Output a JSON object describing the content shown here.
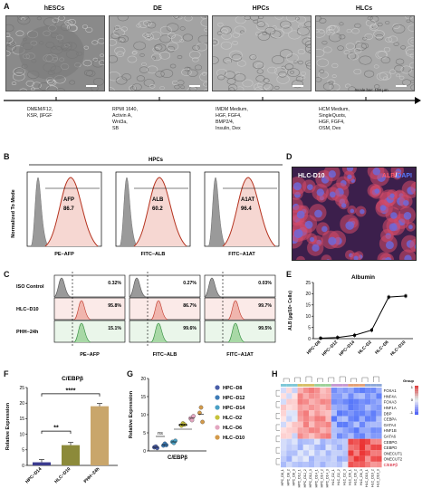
{
  "panels": {
    "A": "A",
    "B": "B",
    "C": "C",
    "D": "D",
    "E": "E",
    "F": "F",
    "G": "G",
    "H": "H"
  },
  "panelA": {
    "stages": [
      "hESCs",
      "DE",
      "HPCs",
      "HLCs"
    ],
    "media": [
      "DMEM/F12,\nKSR, βFGF",
      "RPMI 1640,\nActivin A,\nWnt3a,\nSB",
      "IMDM Medium,\nHGF, FGF4,\nBMP2/4,\nInsulin, Dex",
      "HCM Medium,\nSingleQuots,\nHGF, FGF4,\nOSM, Dex"
    ],
    "scale_bar": "Scale bar: 100 μm"
  },
  "panelB": {
    "header": "HPCs",
    "ylabel": "Normalized To Mode",
    "plots": [
      {
        "marker": "AFP",
        "value": "86.7",
        "xlabel": "PE−AFP"
      },
      {
        "marker": "ALB",
        "value": "60.2",
        "xlabel": "FITC−ALB"
      },
      {
        "marker": "A1AT",
        "value": "96.4",
        "xlabel": "FITC−A1AT"
      }
    ]
  },
  "panelC": {
    "rows": [
      "ISO Control",
      "HLC−D10",
      "PHH−24h"
    ],
    "columns": [
      {
        "xlabel": "PE−AFP",
        "values": [
          "0.32%",
          "95.8%",
          "15.1%"
        ]
      },
      {
        "xlabel": "FITC−ALB",
        "values": [
          "0.27%",
          "86.7%",
          "99.6%"
        ]
      },
      {
        "xlabel": "FITC−A1AT",
        "values": [
          "0.03%",
          "99.7%",
          "99.5%"
        ]
      }
    ]
  },
  "panelD": {
    "label": "HLC-D10",
    "stain_alb": "ALB",
    "stain_sep": "/",
    "stain_dapi": "DAPI"
  },
  "panelE": {
    "title": "Albumin"
  },
  "panelF": {
    "title": "C/EBPβ"
  },
  "panelG": {
    "xlabel": "C/EBPβ",
    "ylabel": "Relative Expression",
    "sig": "****",
    "ns": "ns",
    "legend": [
      "HPC−D8",
      "HPC−D12",
      "HPC−D14",
      "HLC−D2",
      "HLC−D6",
      "HLC−D10"
    ]
  },
  "panelH": {
    "genes": [
      "FOXA1",
      "HNF4A",
      "FOXA3",
      "HNF1A",
      "DBP",
      "CEBPA",
      "GATA4",
      "HNF1B",
      "GATA6",
      "CEBPG",
      "CEBPD",
      "ONECUT1",
      "ONECUT2",
      "C/EBPβ"
    ],
    "group_label": "Group",
    "cols": [
      "HPC_D8_1",
      "HPC_D8_2",
      "HPC_D8_3",
      "HPC_D12_1",
      "HPC_D12_2",
      "HPC_D12_3",
      "HPC_D14_1",
      "HPC_D14_2",
      "HPC_D14_3",
      "HLC_D2_1",
      "HLC_D2_2",
      "HLC_D2_3",
      "HLC_D6_1",
      "HLC_D6_2",
      "HLC_D6_3",
      "HLC_D10_1",
      "HLC_D10_2",
      "HLC_D10_3"
    ],
    "scale": [
      "1",
      "0",
      "-1"
    ]
  },
  "chart_data": [
    {
      "type": "line",
      "title": "Albumin",
      "ylabel": "ALB (μg/10⁶ Cells)",
      "categories": [
        "HPC−D8",
        "HPC−D12",
        "HPC−D14",
        "HLC−D2",
        "HLC−D6",
        "HLC−D10"
      ],
      "values": [
        0.2,
        0.5,
        1.5,
        3.8,
        18.5,
        19.0
      ],
      "yticks": [
        "0",
        "5",
        "10",
        "15",
        "20",
        "25"
      ],
      "ylim": [
        0,
        25
      ]
    },
    {
      "type": "bar",
      "title": "C/EBPβ",
      "ylabel": "Relative Expression",
      "categories": [
        "HPC−D14",
        "HLC−D10",
        "PHH−24h"
      ],
      "values": [
        1.0,
        6.5,
        19.0
      ],
      "colors": [
        "#3b3b8f",
        "#8c8a3a",
        "#c9a66b"
      ],
      "yticks": [
        "0",
        "5",
        "10",
        "15",
        "20",
        "25"
      ],
      "ylim": [
        0,
        25
      ],
      "sig": [
        "**",
        "****"
      ]
    },
    {
      "type": "scatter",
      "title": "",
      "ylabel": "Relative Expression",
      "xlabel": "C/EBPβ",
      "yticks": [
        "0",
        "5",
        "10",
        "15",
        "20"
      ],
      "ylim": [
        0,
        20
      ],
      "series": [
        {
          "name": "HPC−D8",
          "values": [
            1.0,
            1.2,
            0.8
          ],
          "color": "#4a5ea8"
        },
        {
          "name": "HPC−D12",
          "values": [
            1.5,
            2.0,
            1.6
          ],
          "color": "#3e7bb6"
        },
        {
          "name": "HPC−D14",
          "values": [
            2.5,
            2.2,
            2.8
          ],
          "color": "#4aa0c4"
        },
        {
          "name": "HLC−D2",
          "values": [
            7.0,
            7.6,
            7.3
          ],
          "color": "#c6c23a"
        },
        {
          "name": "HLC−D6",
          "values": [
            9.0,
            8.5,
            9.6
          ],
          "color": "#e3a6c0"
        },
        {
          "name": "HLC−D10",
          "values": [
            10.5,
            12.0,
            8.0
          ],
          "color": "#d39a4a"
        }
      ]
    }
  ]
}
